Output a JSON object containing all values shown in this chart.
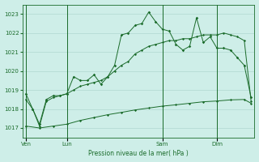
{
  "title": "Pression niveau de la mer( hPa )",
  "bg_color": "#ceeee8",
  "grid_color": "#b0d8d0",
  "line_color": "#1a6b2a",
  "ylim": [
    1016.5,
    1023.5
  ],
  "yticks": [
    1017,
    1018,
    1019,
    1020,
    1021,
    1022,
    1023
  ],
  "day_labels": [
    "Ven",
    "Lun",
    "Sam",
    "Dim"
  ],
  "day_positions": [
    0,
    6,
    20,
    28
  ],
  "total_points": 34,
  "series1_x": [
    0,
    1,
    2,
    3,
    4,
    5,
    6,
    7,
    8,
    9,
    10,
    11,
    12,
    13,
    14,
    15,
    16,
    17,
    18,
    19,
    20,
    21,
    22,
    23,
    24,
    25,
    26,
    27,
    28,
    29,
    30,
    31,
    32,
    33
  ],
  "series1_y": [
    1018.8,
    1018.0,
    1017.2,
    1018.5,
    1018.7,
    1018.7,
    1018.8,
    1019.7,
    1019.5,
    1019.5,
    1019.8,
    1019.3,
    1019.7,
    1020.3,
    1021.9,
    1022.0,
    1022.4,
    1022.5,
    1023.1,
    1022.6,
    1022.2,
    1022.1,
    1021.4,
    1021.1,
    1021.3,
    1022.8,
    1021.5,
    1021.8,
    1021.2,
    1021.2,
    1021.1,
    1020.7,
    1020.3,
    1018.6
  ],
  "series2_x": [
    0,
    1,
    2,
    3,
    4,
    5,
    6,
    7,
    8,
    9,
    10,
    11,
    12,
    13,
    14,
    15,
    16,
    17,
    18,
    19,
    20,
    21,
    22,
    23,
    24,
    25,
    26,
    27,
    28,
    29,
    30,
    31,
    32,
    33
  ],
  "series2_y": [
    1018.5,
    1018.0,
    1017.1,
    1018.4,
    1018.6,
    1018.7,
    1018.8,
    1019.0,
    1019.2,
    1019.3,
    1019.4,
    1019.5,
    1019.7,
    1020.0,
    1020.3,
    1020.5,
    1020.9,
    1021.1,
    1021.3,
    1021.4,
    1021.5,
    1021.6,
    1021.6,
    1021.7,
    1021.7,
    1021.8,
    1021.9,
    1021.9,
    1021.9,
    1022.0,
    1021.9,
    1021.8,
    1021.6,
    1018.4
  ],
  "series3_x": [
    0,
    2,
    4,
    6,
    8,
    10,
    12,
    14,
    16,
    18,
    20,
    22,
    24,
    26,
    28,
    30,
    32,
    33
  ],
  "series3_y": [
    1017.1,
    1017.0,
    1017.1,
    1017.2,
    1017.4,
    1017.55,
    1017.7,
    1017.82,
    1017.95,
    1018.05,
    1018.15,
    1018.22,
    1018.3,
    1018.38,
    1018.42,
    1018.48,
    1018.5,
    1018.3
  ]
}
